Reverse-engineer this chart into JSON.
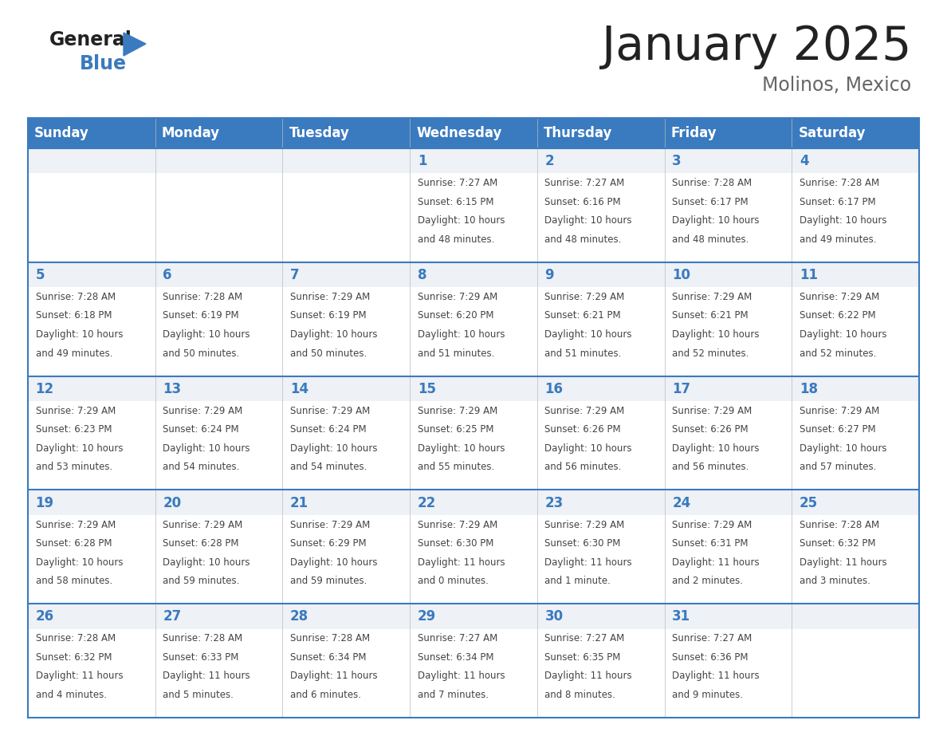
{
  "title": "January 2025",
  "subtitle": "Molinos, Mexico",
  "days_of_week": [
    "Sunday",
    "Monday",
    "Tuesday",
    "Wednesday",
    "Thursday",
    "Friday",
    "Saturday"
  ],
  "header_bg": "#3a7abf",
  "header_text": "#ffffff",
  "cell_bg_light": "#eef1f5",
  "cell_bg_white": "#ffffff",
  "border_color": "#3a7abf",
  "day_text_color": "#3a7abf",
  "content_text_color": "#444444",
  "title_color": "#222222",
  "subtitle_color": "#666666",
  "logo_general_color": "#222222",
  "logo_blue_color": "#3a7abf",
  "logo_triangle_color": "#3a7abf",
  "calendar_data": [
    [
      {
        "day": "",
        "sunrise": "",
        "sunset": "",
        "daylight": ""
      },
      {
        "day": "",
        "sunrise": "",
        "sunset": "",
        "daylight": ""
      },
      {
        "day": "",
        "sunrise": "",
        "sunset": "",
        "daylight": ""
      },
      {
        "day": "1",
        "sunrise": "7:27 AM",
        "sunset": "6:15 PM",
        "daylight": "10 hours and 48 minutes."
      },
      {
        "day": "2",
        "sunrise": "7:27 AM",
        "sunset": "6:16 PM",
        "daylight": "10 hours and 48 minutes."
      },
      {
        "day": "3",
        "sunrise": "7:28 AM",
        "sunset": "6:17 PM",
        "daylight": "10 hours and 48 minutes."
      },
      {
        "day": "4",
        "sunrise": "7:28 AM",
        "sunset": "6:17 PM",
        "daylight": "10 hours and 49 minutes."
      }
    ],
    [
      {
        "day": "5",
        "sunrise": "7:28 AM",
        "sunset": "6:18 PM",
        "daylight": "10 hours and 49 minutes."
      },
      {
        "day": "6",
        "sunrise": "7:28 AM",
        "sunset": "6:19 PM",
        "daylight": "10 hours and 50 minutes."
      },
      {
        "day": "7",
        "sunrise": "7:29 AM",
        "sunset": "6:19 PM",
        "daylight": "10 hours and 50 minutes."
      },
      {
        "day": "8",
        "sunrise": "7:29 AM",
        "sunset": "6:20 PM",
        "daylight": "10 hours and 51 minutes."
      },
      {
        "day": "9",
        "sunrise": "7:29 AM",
        "sunset": "6:21 PM",
        "daylight": "10 hours and 51 minutes."
      },
      {
        "day": "10",
        "sunrise": "7:29 AM",
        "sunset": "6:21 PM",
        "daylight": "10 hours and 52 minutes."
      },
      {
        "day": "11",
        "sunrise": "7:29 AM",
        "sunset": "6:22 PM",
        "daylight": "10 hours and 52 minutes."
      }
    ],
    [
      {
        "day": "12",
        "sunrise": "7:29 AM",
        "sunset": "6:23 PM",
        "daylight": "10 hours and 53 minutes."
      },
      {
        "day": "13",
        "sunrise": "7:29 AM",
        "sunset": "6:24 PM",
        "daylight": "10 hours and 54 minutes."
      },
      {
        "day": "14",
        "sunrise": "7:29 AM",
        "sunset": "6:24 PM",
        "daylight": "10 hours and 54 minutes."
      },
      {
        "day": "15",
        "sunrise": "7:29 AM",
        "sunset": "6:25 PM",
        "daylight": "10 hours and 55 minutes."
      },
      {
        "day": "16",
        "sunrise": "7:29 AM",
        "sunset": "6:26 PM",
        "daylight": "10 hours and 56 minutes."
      },
      {
        "day": "17",
        "sunrise": "7:29 AM",
        "sunset": "6:26 PM",
        "daylight": "10 hours and 56 minutes."
      },
      {
        "day": "18",
        "sunrise": "7:29 AM",
        "sunset": "6:27 PM",
        "daylight": "10 hours and 57 minutes."
      }
    ],
    [
      {
        "day": "19",
        "sunrise": "7:29 AM",
        "sunset": "6:28 PM",
        "daylight": "10 hours and 58 minutes."
      },
      {
        "day": "20",
        "sunrise": "7:29 AM",
        "sunset": "6:28 PM",
        "daylight": "10 hours and 59 minutes."
      },
      {
        "day": "21",
        "sunrise": "7:29 AM",
        "sunset": "6:29 PM",
        "daylight": "10 hours and 59 minutes."
      },
      {
        "day": "22",
        "sunrise": "7:29 AM",
        "sunset": "6:30 PM",
        "daylight": "11 hours and 0 minutes."
      },
      {
        "day": "23",
        "sunrise": "7:29 AM",
        "sunset": "6:30 PM",
        "daylight": "11 hours and 1 minute."
      },
      {
        "day": "24",
        "sunrise": "7:29 AM",
        "sunset": "6:31 PM",
        "daylight": "11 hours and 2 minutes."
      },
      {
        "day": "25",
        "sunrise": "7:28 AM",
        "sunset": "6:32 PM",
        "daylight": "11 hours and 3 minutes."
      }
    ],
    [
      {
        "day": "26",
        "sunrise": "7:28 AM",
        "sunset": "6:32 PM",
        "daylight": "11 hours and 4 minutes."
      },
      {
        "day": "27",
        "sunrise": "7:28 AM",
        "sunset": "6:33 PM",
        "daylight": "11 hours and 5 minutes."
      },
      {
        "day": "28",
        "sunrise": "7:28 AM",
        "sunset": "6:34 PM",
        "daylight": "11 hours and 6 minutes."
      },
      {
        "day": "29",
        "sunrise": "7:27 AM",
        "sunset": "6:34 PM",
        "daylight": "11 hours and 7 minutes."
      },
      {
        "day": "30",
        "sunrise": "7:27 AM",
        "sunset": "6:35 PM",
        "daylight": "11 hours and 8 minutes."
      },
      {
        "day": "31",
        "sunrise": "7:27 AM",
        "sunset": "6:36 PM",
        "daylight": "11 hours and 9 minutes."
      },
      {
        "day": "",
        "sunrise": "",
        "sunset": "",
        "daylight": ""
      }
    ]
  ]
}
